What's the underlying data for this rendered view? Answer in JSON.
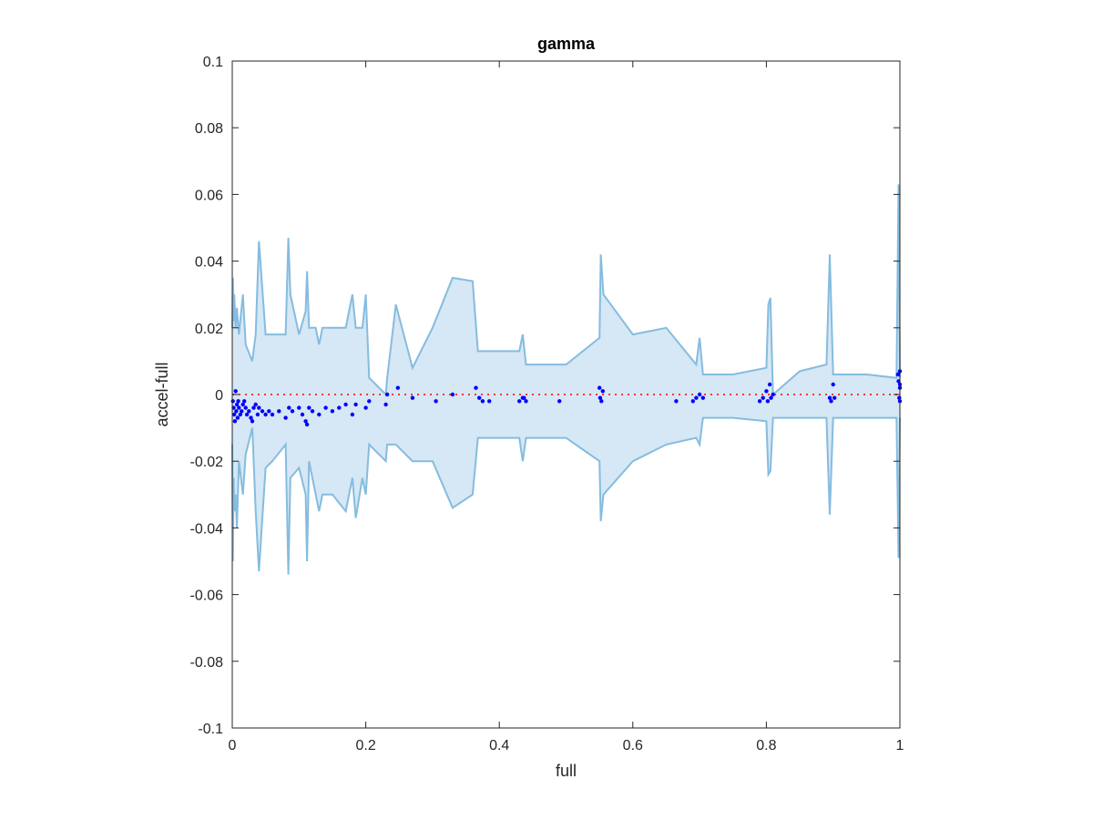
{
  "chart_data": {
    "type": "scatter",
    "title": "gamma",
    "xlabel": "full",
    "ylabel": "accel-full",
    "xlim": [
      0,
      1
    ],
    "ylim": [
      -0.1,
      0.1
    ],
    "xticks": [
      "0",
      "0.2",
      "0.4",
      "0.6",
      "0.8",
      "1"
    ],
    "yticks": [
      "-0.1",
      "-0.08",
      "-0.06",
      "-0.04",
      "-0.02",
      "0",
      "0.02",
      "0.04",
      "0.06",
      "0.08",
      "0.1"
    ],
    "grid": false,
    "reference_line": {
      "y": 0,
      "style": "dotted",
      "color": "#ff3333"
    },
    "band_color": "#d6e7f5",
    "band_edge_color": "#85bcdf",
    "point_color": "#0000ff",
    "band": {
      "x": [
        0,
        0.001,
        0.002,
        0.003,
        0.005,
        0.007,
        0.01,
        0.013,
        0.016,
        0.02,
        0.03,
        0.035,
        0.04,
        0.05,
        0.06,
        0.08,
        0.084,
        0.087,
        0.1,
        0.11,
        0.112,
        0.115,
        0.125,
        0.13,
        0.135,
        0.15,
        0.17,
        0.18,
        0.185,
        0.195,
        0.2,
        0.205,
        0.23,
        0.232,
        0.245,
        0.27,
        0.3,
        0.33,
        0.36,
        0.368,
        0.38,
        0.43,
        0.435,
        0.44,
        0.5,
        0.55,
        0.552,
        0.556,
        0.6,
        0.65,
        0.695,
        0.7,
        0.705,
        0.75,
        0.8,
        0.803,
        0.806,
        0.81,
        0.85,
        0.89,
        0.895,
        0.9,
        0.95,
        0.995,
        0.998,
        1.0
      ],
      "upper": [
        0.02,
        0.035,
        0.022,
        0.03,
        0.02,
        0.026,
        0.018,
        0.024,
        0.03,
        0.015,
        0.01,
        0.018,
        0.046,
        0.018,
        0.018,
        0.018,
        0.047,
        0.03,
        0.018,
        0.025,
        0.037,
        0.02,
        0.02,
        0.015,
        0.02,
        0.02,
        0.02,
        0.03,
        0.02,
        0.02,
        0.03,
        0.005,
        0.0,
        0.005,
        0.027,
        0.008,
        0.02,
        0.035,
        0.034,
        0.013,
        0.013,
        0.013,
        0.018,
        0.009,
        0.009,
        0.017,
        0.042,
        0.03,
        0.018,
        0.02,
        0.009,
        0.017,
        0.006,
        0.006,
        0.008,
        0.027,
        0.029,
        0.0,
        0.007,
        0.009,
        0.042,
        0.006,
        0.006,
        0.005,
        0.063,
        0.005
      ],
      "lower": [
        -0.015,
        -0.05,
        -0.025,
        -0.035,
        -0.03,
        -0.04,
        -0.02,
        -0.025,
        -0.03,
        -0.018,
        -0.01,
        -0.035,
        -0.053,
        -0.022,
        -0.02,
        -0.015,
        -0.054,
        -0.025,
        -0.022,
        -0.03,
        -0.05,
        -0.02,
        -0.03,
        -0.035,
        -0.03,
        -0.03,
        -0.035,
        -0.025,
        -0.037,
        -0.025,
        -0.03,
        -0.015,
        -0.02,
        -0.015,
        -0.015,
        -0.02,
        -0.02,
        -0.034,
        -0.03,
        -0.013,
        -0.013,
        -0.013,
        -0.02,
        -0.013,
        -0.013,
        -0.02,
        -0.038,
        -0.03,
        -0.02,
        -0.015,
        -0.013,
        -0.015,
        -0.007,
        -0.007,
        -0.008,
        -0.024,
        -0.023,
        -0.007,
        -0.007,
        -0.007,
        -0.036,
        -0.007,
        -0.007,
        -0.007,
        -0.049,
        -0.007
      ]
    },
    "points": {
      "x": [
        0.001,
        0.002,
        0.003,
        0.004,
        0.005,
        0.006,
        0.007,
        0.008,
        0.009,
        0.01,
        0.012,
        0.014,
        0.016,
        0.018,
        0.02,
        0.022,
        0.025,
        0.028,
        0.03,
        0.032,
        0.035,
        0.038,
        0.04,
        0.045,
        0.05,
        0.055,
        0.06,
        0.07,
        0.08,
        0.085,
        0.09,
        0.1,
        0.105,
        0.11,
        0.112,
        0.115,
        0.12,
        0.13,
        0.14,
        0.15,
        0.16,
        0.17,
        0.18,
        0.185,
        0.2,
        0.205,
        0.23,
        0.232,
        0.248,
        0.27,
        0.305,
        0.33,
        0.365,
        0.37,
        0.375,
        0.385,
        0.43,
        0.435,
        0.437,
        0.44,
        0.49,
        0.55,
        0.551,
        0.553,
        0.555,
        0.665,
        0.69,
        0.695,
        0.7,
        0.705,
        0.79,
        0.795,
        0.8,
        0.802,
        0.805,
        0.807,
        0.81,
        0.895,
        0.897,
        0.9,
        0.902,
        0.997,
        0.998,
        0.999,
        1.0,
        1.0,
        1.0,
        1.0
      ],
      "y": [
        -0.002,
        -0.004,
        -0.006,
        -0.008,
        0.001,
        -0.005,
        -0.003,
        -0.007,
        -0.002,
        -0.004,
        -0.006,
        -0.005,
        -0.003,
        -0.002,
        -0.004,
        -0.006,
        -0.005,
        -0.007,
        -0.008,
        -0.004,
        -0.003,
        -0.006,
        -0.004,
        -0.005,
        -0.006,
        -0.005,
        -0.006,
        -0.005,
        -0.007,
        -0.004,
        -0.005,
        -0.004,
        -0.006,
        -0.008,
        -0.009,
        -0.004,
        -0.005,
        -0.006,
        -0.004,
        -0.005,
        -0.004,
        -0.003,
        -0.006,
        -0.003,
        -0.004,
        -0.002,
        -0.003,
        0.0,
        0.002,
        -0.001,
        -0.002,
        0.0,
        0.002,
        -0.001,
        -0.002,
        -0.002,
        -0.002,
        -0.001,
        -0.001,
        -0.002,
        -0.002,
        0.002,
        -0.001,
        -0.002,
        0.001,
        -0.002,
        -0.002,
        -0.001,
        0.0,
        -0.001,
        -0.002,
        -0.001,
        0.001,
        -0.002,
        0.003,
        -0.001,
        0.0,
        -0.001,
        -0.002,
        0.003,
        -0.001,
        0.006,
        0.004,
        -0.001,
        0.002,
        0.007,
        -0.002,
        0.003
      ]
    }
  }
}
